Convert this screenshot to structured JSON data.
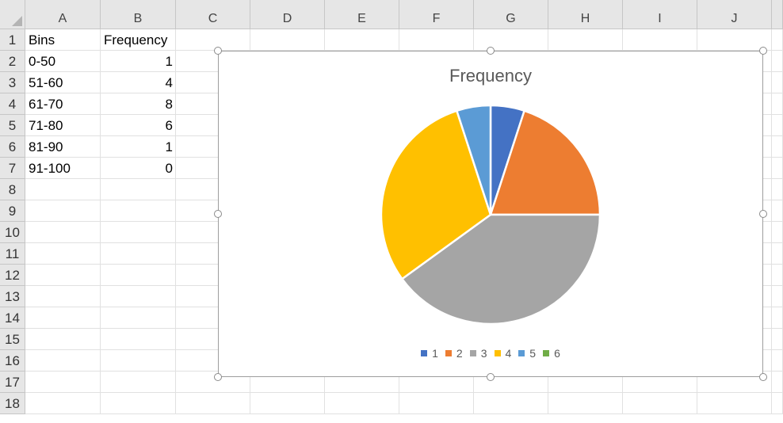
{
  "columns": [
    "A",
    "B",
    "C",
    "D",
    "E",
    "F",
    "G",
    "H",
    "I",
    "J"
  ],
  "rows": [
    "1",
    "2",
    "3",
    "4",
    "5",
    "6",
    "7",
    "8",
    "9",
    "10",
    "11",
    "12",
    "13",
    "14",
    "15",
    "16",
    "17",
    "18"
  ],
  "cells": {
    "A1": "Bins",
    "B1": "Frequency",
    "A2": "0-50",
    "B2": "1",
    "A3": "51-60",
    "B3": "4",
    "A4": "61-70",
    "B4": "8",
    "A5": "71-80",
    "B5": "6",
    "A6": "81-90",
    "B6": "1",
    "A7": "91-100",
    "B7": "0"
  },
  "chart_data": {
    "type": "pie",
    "title": "Frequency",
    "categories": [
      "1",
      "2",
      "3",
      "4",
      "5",
      "6"
    ],
    "values": [
      1,
      4,
      8,
      6,
      1,
      0
    ],
    "colors": [
      "#4472C4",
      "#ED7D31",
      "#A5A5A5",
      "#FFC000",
      "#5B9BD5",
      "#70AD47"
    ],
    "legend_position": "bottom"
  }
}
